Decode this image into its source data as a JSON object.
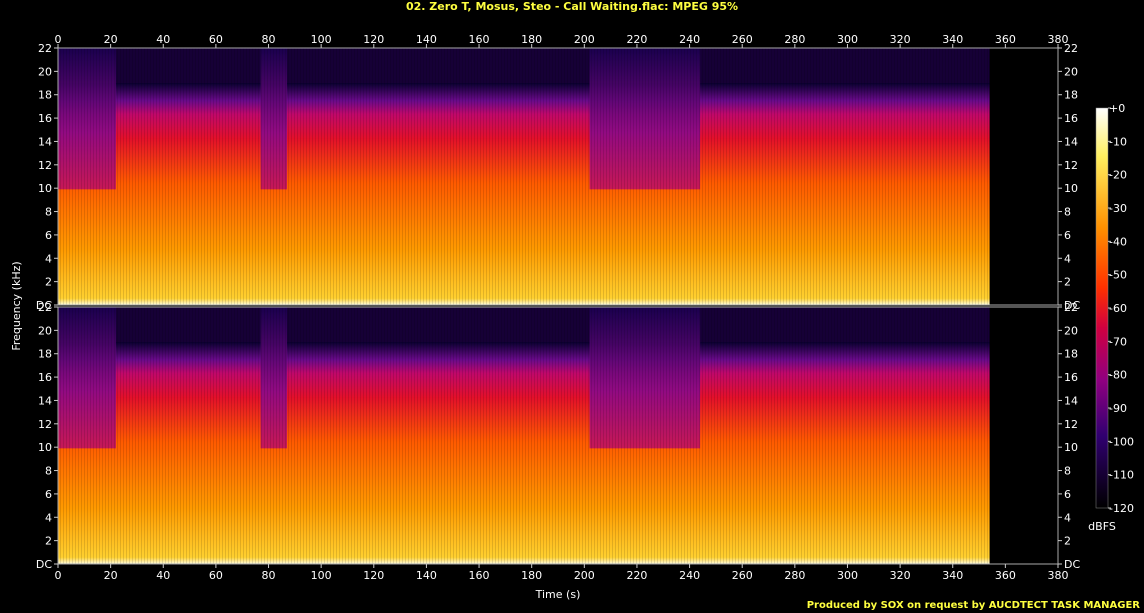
{
  "title": "02. Zero T, Mosus, Steo - Call Waiting.flac: MPEG 95%",
  "footer": "Produced by SOX on request by AUCDTECT TASK MANAGER",
  "chart_data": {
    "type": "heatmap",
    "subtype": "spectrogram",
    "channels": 2,
    "xlabel": "Time (s)",
    "ylabel": "Frequency (kHz)",
    "x_ticks": [
      0,
      20,
      40,
      60,
      80,
      100,
      120,
      140,
      160,
      180,
      200,
      220,
      240,
      260,
      280,
      300,
      320,
      340,
      360,
      380
    ],
    "xlim": [
      0,
      380
    ],
    "y_ticks": [
      "DC",
      "2",
      "4",
      "6",
      "8",
      "10",
      "12",
      "14",
      "16",
      "18",
      "20",
      "22"
    ],
    "y_tick_values": [
      0,
      2,
      4,
      6,
      8,
      10,
      12,
      14,
      16,
      18,
      20,
      22
    ],
    "ylim": [
      0,
      22
    ],
    "colorbar_label": "dBFS",
    "colorbar_ticks": [
      "+0",
      "-10",
      "-20",
      "-30",
      "-40",
      "-50",
      "-60",
      "-70",
      "-80",
      "-90",
      "-100",
      "-110",
      "-120"
    ],
    "colorbar_range": [
      -120,
      0
    ],
    "audio_end_s": 354,
    "lowpass_cutoff_khz": 19,
    "dropout_segments_s": [
      [
        0,
        22
      ],
      [
        77,
        87
      ],
      [
        202,
        244
      ]
    ],
    "colors": {
      "title": "#ffff40",
      "axis": "#ffffff",
      "background": "#000000"
    }
  }
}
